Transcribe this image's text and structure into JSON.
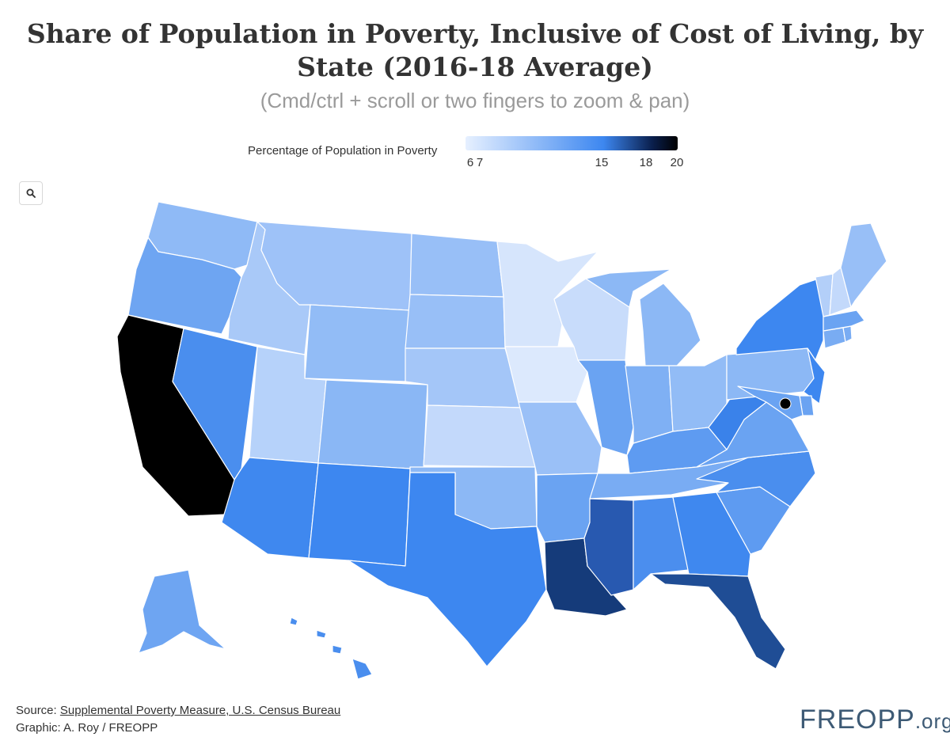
{
  "title": "Share of Population in Poverty, Inclusive of Cost of Living, by State (2016-18 Average)",
  "subtitle": "(Cmd/ctrl + scroll or two fingers to zoom & pan)",
  "legend": {
    "label": "Percentage of Population in Poverty",
    "ticks": [
      "6",
      "7",
      "15",
      "18",
      "20"
    ],
    "min": 6,
    "max": 20,
    "colors": [
      "#e6f0ff",
      "#3d87f0",
      "#0a1f4d",
      "#000000"
    ]
  },
  "zoom_icon": "search-icon",
  "states": {
    "WA": {
      "value": 11.0,
      "color": "#8fbaf6"
    },
    "OR": {
      "value": 12.5,
      "color": "#6ea5f2"
    },
    "CA": {
      "value": 19.0,
      "color": "#000000"
    },
    "NV": {
      "value": 13.5,
      "color": "#4a8eee"
    },
    "ID": {
      "value": 9.8,
      "color": "#a9c9f8"
    },
    "MT": {
      "value": 10.5,
      "color": "#9ec2f8"
    },
    "WY": {
      "value": 10.5,
      "color": "#92bcf6"
    },
    "UT": {
      "value": 9.0,
      "color": "#b6d2fa"
    },
    "AZ": {
      "value": 14.0,
      "color": "#3f88ef"
    },
    "CO": {
      "value": 11.0,
      "color": "#8ab7f5"
    },
    "NM": {
      "value": 15.0,
      "color": "#3d87f0"
    },
    "ND": {
      "value": 10.5,
      "color": "#98bff7"
    },
    "SD": {
      "value": 10.5,
      "color": "#98bff7"
    },
    "NE": {
      "value": 10.0,
      "color": "#a4c6f8"
    },
    "KS": {
      "value": 8.5,
      "color": "#c3d9fb"
    },
    "OK": {
      "value": 11.0,
      "color": "#8cb8f5"
    },
    "TX": {
      "value": 14.5,
      "color": "#3d87f0"
    },
    "MN": {
      "value": 7.5,
      "color": "#d6e5fc"
    },
    "IA": {
      "value": 7.0,
      "color": "#dce9fd"
    },
    "MO": {
      "value": 10.5,
      "color": "#9ac0f7"
    },
    "AR": {
      "value": 12.5,
      "color": "#6aa3f2"
    },
    "LA": {
      "value": 18.5,
      "color": "#153b7a"
    },
    "WI": {
      "value": 8.5,
      "color": "#c8dcfb"
    },
    "IL": {
      "value": 12.5,
      "color": "#6aa3f2"
    },
    "MI": {
      "value": 11.0,
      "color": "#8cb8f5"
    },
    "IN": {
      "value": 11.5,
      "color": "#7fb0f4"
    },
    "OH": {
      "value": 11.0,
      "color": "#92bcf6"
    },
    "KY": {
      "value": 13.0,
      "color": "#5e9bf1"
    },
    "TN": {
      "value": 12.0,
      "color": "#79acf3"
    },
    "MS": {
      "value": 16.5,
      "color": "#2859b0"
    },
    "AL": {
      "value": 14.0,
      "color": "#4b8eee"
    },
    "GA": {
      "value": 15.0,
      "color": "#3f88ef"
    },
    "FL": {
      "value": 17.0,
      "color": "#1f4d95"
    },
    "SC": {
      "value": 13.0,
      "color": "#5e9bf1"
    },
    "NC": {
      "value": 14.0,
      "color": "#4a8eee"
    },
    "VA": {
      "value": 12.5,
      "color": "#6aa3f2"
    },
    "WV": {
      "value": 15.5,
      "color": "#3a82ea"
    },
    "PA": {
      "value": 11.0,
      "color": "#8cb8f5"
    },
    "NY": {
      "value": 15.0,
      "color": "#3d87f0"
    },
    "NJ": {
      "value": 15.0,
      "color": "#3d87f0"
    },
    "DE": {
      "value": 12.5,
      "color": "#6aa3f2"
    },
    "MD": {
      "value": 12.5,
      "color": "#6aa3f2"
    },
    "DC": {
      "value": 19.5,
      "color": "#000000"
    },
    "CT": {
      "value": 12.0,
      "color": "#79acf3"
    },
    "RI": {
      "value": 12.0,
      "color": "#79acf3"
    },
    "MA": {
      "value": 12.5,
      "color": "#6aa3f2"
    },
    "VT": {
      "value": 9.5,
      "color": "#b3cff9"
    },
    "NH": {
      "value": 8.5,
      "color": "#c3d9fb"
    },
    "ME": {
      "value": 10.5,
      "color": "#98bff7"
    },
    "AK": {
      "value": 12.5,
      "color": "#6ea5f2"
    },
    "HI": {
      "value": 14.0,
      "color": "#4a8eee"
    }
  },
  "source": {
    "prefix": "Source: ",
    "link_text": "Supplemental Poverty Measure, U.S. Census Bureau"
  },
  "credit": "Graphic: A. Roy / FREOPP",
  "logo": {
    "part1": "FRE",
    "part2": "OPP",
    "suffix": ".org"
  }
}
